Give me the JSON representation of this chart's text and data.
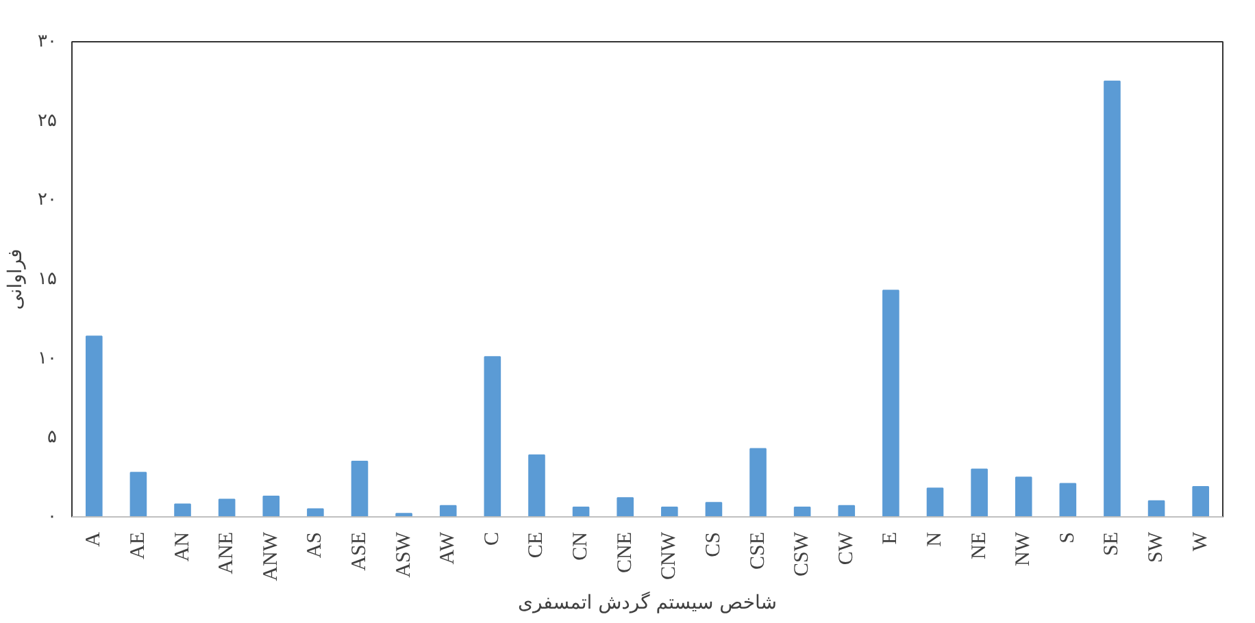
{
  "chart_data": {
    "type": "bar",
    "xlabel": "شاخص سیستم گردش اتمسفری",
    "ylabel": "فراوانی",
    "categories": [
      "A",
      "AE",
      "AN",
      "ANE",
      "ANW",
      "AS",
      "ASE",
      "ASW",
      "AW",
      "C",
      "CE",
      "CN",
      "CNE",
      "CNW",
      "CS",
      "CSE",
      "CSW",
      "CW",
      "E",
      "N",
      "NE",
      "NW",
      "S",
      "SE",
      "SW",
      "W"
    ],
    "values": [
      11.4,
      2.8,
      0.8,
      1.1,
      1.3,
      0.5,
      3.5,
      0.2,
      0.7,
      10.1,
      3.9,
      0.6,
      1.2,
      0.6,
      0.9,
      4.3,
      0.6,
      0.7,
      14.3,
      1.8,
      3.0,
      2.5,
      2.1,
      27.5,
      1.0,
      1.9
    ],
    "color": "#5b9bd5",
    "ylim": [
      0,
      30
    ],
    "yticks": [
      {
        "value": 0,
        "label": "۰"
      },
      {
        "value": 5,
        "label": "۵"
      },
      {
        "value": 10,
        "label": "۱۰"
      },
      {
        "value": 15,
        "label": "۱۵"
      },
      {
        "value": 20,
        "label": "۲۰"
      },
      {
        "value": 25,
        "label": "۲۵"
      },
      {
        "value": 30,
        "label": "۳۰"
      }
    ],
    "grid": false
  }
}
